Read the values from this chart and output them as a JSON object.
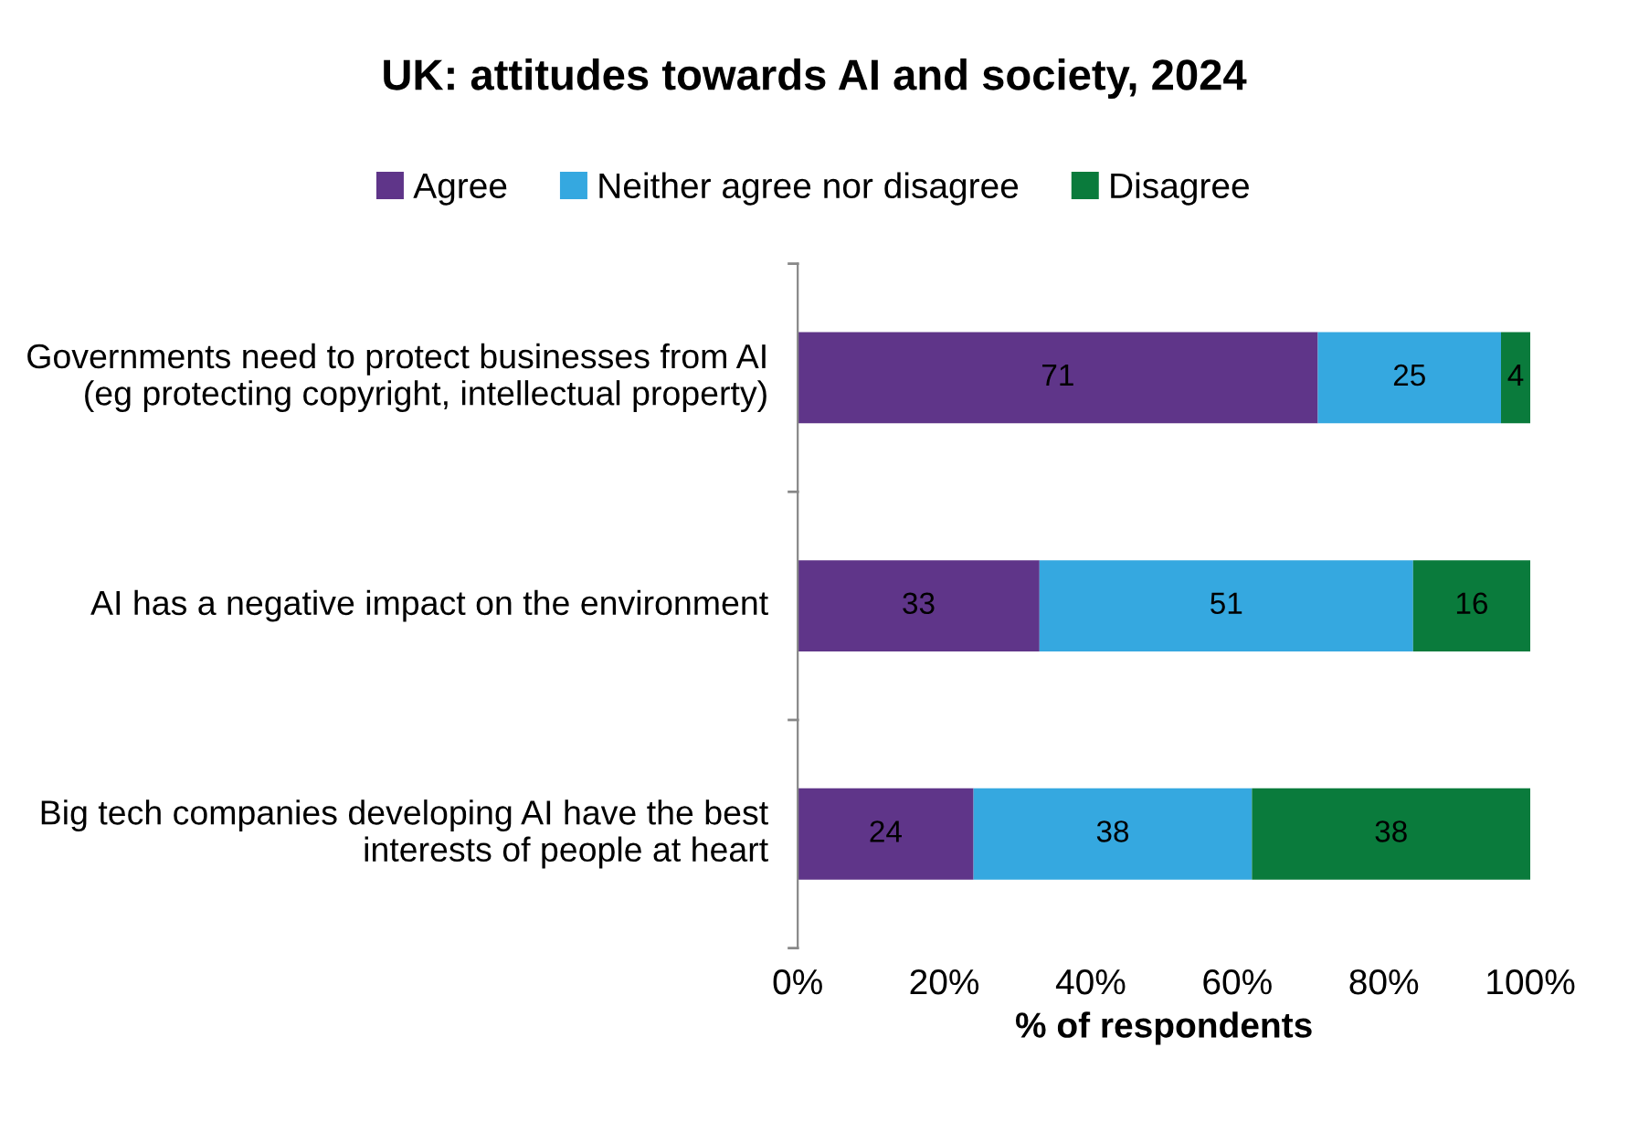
{
  "chart_data": {
    "type": "bar",
    "orientation": "horizontal",
    "stacked": true,
    "title": "UK: attitudes towards AI and society, 2024",
    "xlabel": "% of respondents",
    "categories": [
      "Governments need to protect businesses from AI (eg protecting copyright, intellectual property)",
      "AI has a negative impact on the environment",
      "Big tech companies developing AI have the best interests of people at heart"
    ],
    "series": [
      {
        "name": "Agree",
        "color": "#5f3589",
        "values": [
          71,
          33,
          24
        ]
      },
      {
        "name": "Neither agree nor disagree",
        "color": "#35a8e0",
        "values": [
          25,
          51,
          38
        ]
      },
      {
        "name": "Disagree",
        "color": "#0a7b3c",
        "values": [
          4,
          16,
          38
        ]
      }
    ],
    "xlim": [
      0,
      100
    ],
    "xticks": [
      {
        "value": 0,
        "label": "0%"
      },
      {
        "value": 20,
        "label": "20%"
      },
      {
        "value": 40,
        "label": "40%"
      },
      {
        "value": 60,
        "label": "60%"
      },
      {
        "value": 80,
        "label": "80%"
      },
      {
        "value": 100,
        "label": "100%"
      }
    ],
    "data_labels": true,
    "legend": "top",
    "grid": false
  }
}
